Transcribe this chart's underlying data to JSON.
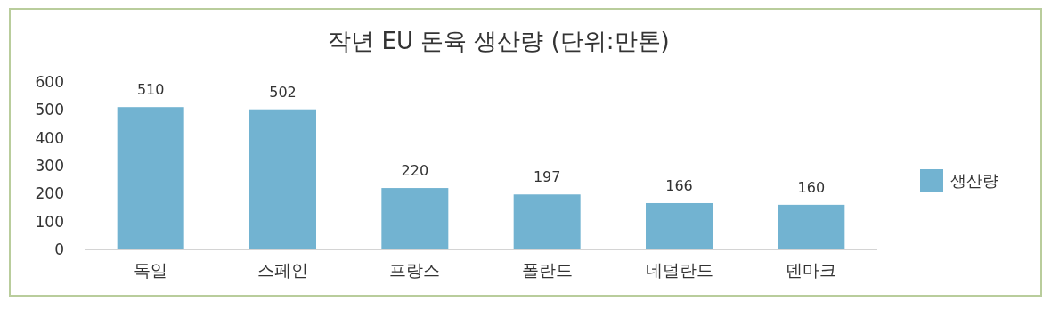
{
  "chart_data": {
    "type": "bar",
    "title": "작년 EU 돈육  생산량  (단위:만톤)",
    "categories": [
      "독일",
      "스페인",
      "프랑스",
      "폴란드",
      "네덜란드",
      "덴마크"
    ],
    "series": [
      {
        "name": "생산량",
        "color": "#72b3d1",
        "values": [
          510,
          502,
          220,
          197,
          166,
          160
        ]
      }
    ],
    "ylim": [
      0,
      600
    ],
    "yticks": [
      0,
      100,
      200,
      300,
      400,
      500,
      600
    ],
    "data_labels": true,
    "legend": "right",
    "grid": false
  }
}
